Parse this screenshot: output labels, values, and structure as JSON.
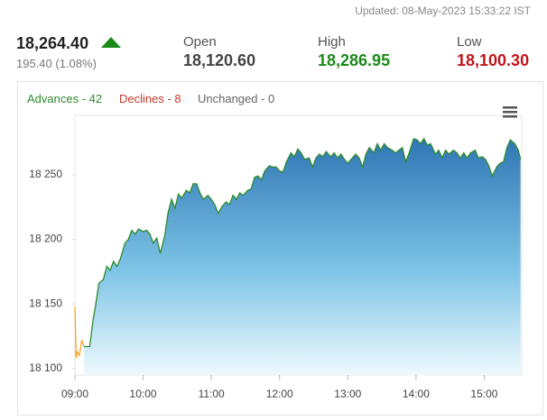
{
  "header": {
    "updated": "Updated: 08-May-2023 15:33:22 IST",
    "price": "18,264.40",
    "change": "195.40 (1.08%)",
    "stats": [
      {
        "label": "Open",
        "value": "18,120.60",
        "color": "#444444"
      },
      {
        "label": "High",
        "value": "18,286.95",
        "color": "#1a8a1a"
      },
      {
        "label": "Low",
        "value": "18,100.30",
        "color": "#c0161b"
      }
    ]
  },
  "breadth": [
    {
      "text": "Advances - 42",
      "color": "#2e8b2e"
    },
    {
      "text": "Declines - 8",
      "color": "#c0392b"
    },
    {
      "text": "Unchanged - 0",
      "color": "#666666"
    }
  ],
  "chart_data": {
    "type": "line",
    "xlim": [
      "09:00",
      "15:33"
    ],
    "xticks": [
      "09:00",
      "10:00",
      "11:00",
      "12:00",
      "13:00",
      "14:00",
      "15:00"
    ],
    "ylim": [
      18095,
      18296
    ],
    "yticks": [
      {
        "value": 18100,
        "label": "18 100"
      },
      {
        "value": 18150,
        "label": "18 150"
      },
      {
        "value": 18200,
        "label": "18 200"
      },
      {
        "value": 18250,
        "label": "18 250"
      }
    ],
    "series": [
      {
        "color": "#f5a623",
        "area": false,
        "x": [
          "09:00",
          "09:01",
          "09:02",
          "09:04",
          "09:06",
          "09:08"
        ],
        "values": [
          18148,
          18108,
          18113,
          18110,
          18122,
          18117
        ]
      },
      {
        "color": "#2e8b2e",
        "area": true,
        "x": [
          "09:08",
          "09:13",
          "09:16",
          "09:18",
          "09:21",
          "09:25",
          "09:28",
          "09:31",
          "09:34",
          "09:37",
          "09:40",
          "09:44",
          "09:47",
          "09:50",
          "09:53",
          "09:56",
          "10:00",
          "10:03",
          "10:06",
          "10:09",
          "10:12",
          "10:15",
          "10:19",
          "10:22",
          "10:25",
          "10:28",
          "10:31",
          "10:34",
          "10:38",
          "10:41",
          "10:44",
          "10:47",
          "10:50",
          "10:53",
          "10:57",
          "11:00",
          "11:03",
          "11:06",
          "11:09",
          "11:13",
          "11:16",
          "11:19",
          "11:22",
          "11:25",
          "11:28",
          "11:32",
          "11:35",
          "11:38",
          "11:41",
          "11:44",
          "11:47",
          "11:51",
          "11:54",
          "11:57",
          "12:00",
          "12:03",
          "12:06",
          "12:10",
          "12:13",
          "12:16",
          "12:19",
          "12:22",
          "12:26",
          "12:29",
          "12:32",
          "12:35",
          "12:38",
          "12:41",
          "12:45",
          "12:48",
          "12:51",
          "12:54",
          "12:57",
          "13:00",
          "13:04",
          "13:07",
          "13:10",
          "13:13",
          "13:16",
          "13:19",
          "13:23",
          "13:26",
          "13:29",
          "13:32",
          "13:35",
          "13:39",
          "13:42",
          "13:45",
          "13:48",
          "13:51",
          "13:54",
          "13:58",
          "14:01",
          "14:04",
          "14:07",
          "14:10",
          "14:13",
          "14:17",
          "14:20",
          "14:23",
          "14:26",
          "14:29",
          "14:33",
          "14:36",
          "14:39",
          "14:42",
          "14:45",
          "14:48",
          "14:52",
          "14:55",
          "14:58",
          "15:01",
          "15:04",
          "15:07",
          "15:11",
          "15:14",
          "15:17",
          "15:20",
          "15:23",
          "15:27",
          "15:30",
          "15:32"
        ],
        "values": [
          18117,
          18117,
          18138,
          18148,
          18166,
          18169,
          18179,
          18176,
          18183,
          18179,
          18185,
          18197,
          18200,
          18207,
          18204,
          18208,
          18206,
          18207,
          18204,
          18197,
          18201,
          18189,
          18203,
          18221,
          18231,
          18224,
          18235,
          18232,
          18238,
          18236,
          18243,
          18243,
          18236,
          18231,
          18234,
          18231,
          18227,
          18220,
          18225,
          18229,
          18227,
          18234,
          18231,
          18236,
          18234,
          18238,
          18239,
          18248,
          18249,
          18246,
          18253,
          18257,
          18256,
          18256,
          18253,
          18252,
          18260,
          18267,
          18264,
          18270,
          18267,
          18262,
          18263,
          18256,
          18263,
          18266,
          18264,
          18268,
          18264,
          18267,
          18263,
          18266,
          18262,
          18259,
          18263,
          18266,
          18263,
          18256,
          18266,
          18271,
          18267,
          18274,
          18269,
          18274,
          18271,
          18269,
          18267,
          18269,
          18271,
          18260,
          18267,
          18278,
          18277,
          18274,
          18278,
          18273,
          18274,
          18266,
          18269,
          18263,
          18269,
          18266,
          18269,
          18267,
          18263,
          18267,
          18263,
          18267,
          18269,
          18263,
          18264,
          18262,
          18257,
          18249,
          18256,
          18259,
          18260,
          18271,
          18277,
          18274,
          18269,
          18262
        ]
      }
    ]
  }
}
